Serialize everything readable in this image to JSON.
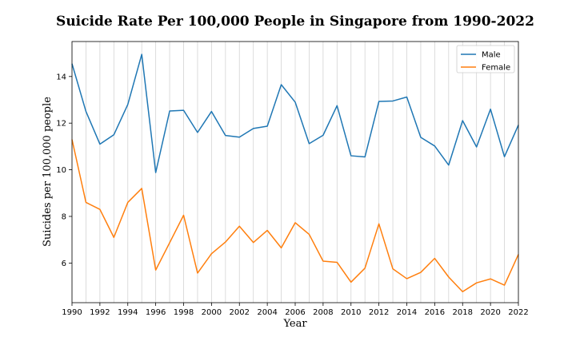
{
  "chart_data": {
    "type": "line",
    "title": "Suicide Rate Per 100,000 People in Singapore from 1990-2022",
    "xlabel": "Year",
    "ylabel": "Suicides per 100,000 people",
    "xlim": [
      1990,
      2022
    ],
    "ylim": [
      4.3,
      15.5
    ],
    "x_ticks": [
      1990,
      1992,
      1994,
      1996,
      1998,
      2000,
      2002,
      2004,
      2006,
      2008,
      2010,
      2012,
      2014,
      2016,
      2018,
      2020,
      2022
    ],
    "y_ticks": [
      6,
      8,
      10,
      12,
      14
    ],
    "grid": "vertical",
    "legend_position": "top-right",
    "x": [
      1990,
      1991,
      1992,
      1993,
      1994,
      1995,
      1996,
      1997,
      1998,
      1999,
      2000,
      2001,
      2002,
      2003,
      2004,
      2005,
      2006,
      2007,
      2008,
      2009,
      2010,
      2011,
      2012,
      2013,
      2014,
      2015,
      2016,
      2017,
      2018,
      2019,
      2020,
      2021,
      2022
    ],
    "series": [
      {
        "name": "Male",
        "color": "#1f77b4",
        "values": [
          14.55,
          12.5,
          11.1,
          11.5,
          12.8,
          14.95,
          9.88,
          12.52,
          12.55,
          11.6,
          12.5,
          11.47,
          11.4,
          11.77,
          11.87,
          13.65,
          12.9,
          11.12,
          11.48,
          12.75,
          10.6,
          10.55,
          12.93,
          12.95,
          13.12,
          11.39,
          11.02,
          10.2,
          12.11,
          10.98,
          12.6,
          10.56,
          11.92
        ]
      },
      {
        "name": "Female",
        "color": "#ff7f0e",
        "values": [
          11.3,
          8.6,
          8.3,
          7.1,
          8.6,
          9.2,
          5.7,
          6.87,
          8.05,
          5.57,
          6.4,
          6.9,
          7.58,
          6.88,
          7.4,
          6.65,
          7.73,
          7.23,
          6.08,
          6.03,
          5.18,
          5.78,
          7.68,
          5.75,
          5.33,
          5.6,
          6.2,
          5.4,
          4.77,
          5.15,
          5.32,
          5.05,
          6.37
        ]
      }
    ]
  }
}
